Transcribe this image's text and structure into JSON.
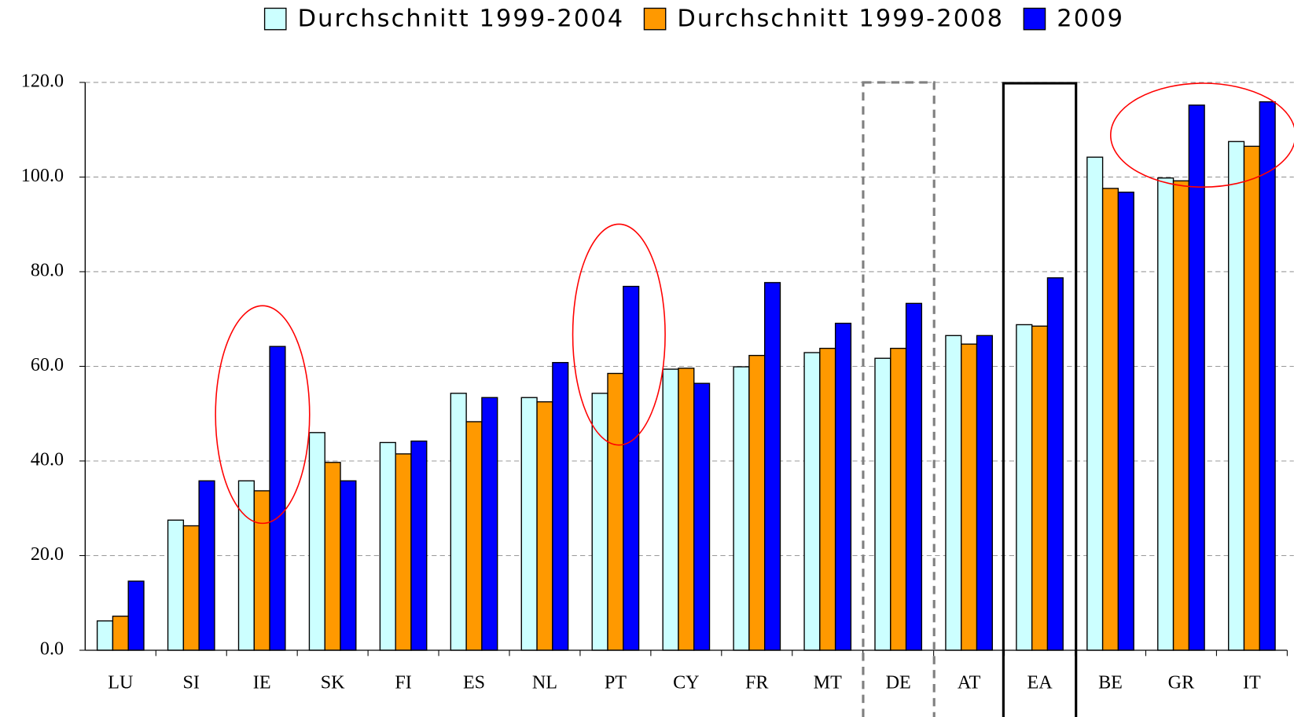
{
  "chart_data": {
    "type": "bar",
    "categories": [
      "LU",
      "SI",
      "IE",
      "SK",
      "FI",
      "ES",
      "NL",
      "PT",
      "CY",
      "FR",
      "MT",
      "DE",
      "AT",
      "EA",
      "BE",
      "GR",
      "IT"
    ],
    "series": [
      {
        "name": "Durchschnitt 1999-2004",
        "color": "#ccffff",
        "values": [
          6.2,
          27.5,
          35.8,
          46.0,
          43.9,
          54.3,
          53.4,
          54.3,
          59.4,
          59.9,
          62.9,
          61.7,
          66.5,
          68.8,
          104.2,
          99.8,
          107.5
        ]
      },
      {
        "name": "Durchschnitt 1999-2008",
        "color": "#ff9900",
        "values": [
          7.2,
          26.3,
          33.7,
          39.7,
          41.5,
          48.3,
          52.5,
          58.5,
          59.6,
          62.3,
          63.8,
          63.8,
          64.7,
          68.5,
          97.6,
          99.2,
          106.5
        ]
      },
      {
        "name": "2009",
        "color": "#0000ff",
        "values": [
          14.6,
          35.8,
          64.2,
          35.8,
          44.2,
          53.4,
          60.8,
          76.9,
          56.4,
          77.7,
          69.1,
          73.3,
          66.5,
          78.7,
          96.8,
          115.2,
          115.9
        ]
      }
    ],
    "ylim": [
      0,
      120
    ],
    "yticks": [
      {
        "value": 0,
        "label": "0.0"
      },
      {
        "value": 20,
        "label": "20.0"
      },
      {
        "value": 40,
        "label": "40.0"
      },
      {
        "value": 60,
        "label": "60.0"
      },
      {
        "value": 80,
        "label": "80.0"
      },
      {
        "value": 100,
        "label": "100.0"
      },
      {
        "value": 120,
        "label": "120.0"
      }
    ],
    "grid": true,
    "legend": "top"
  }
}
